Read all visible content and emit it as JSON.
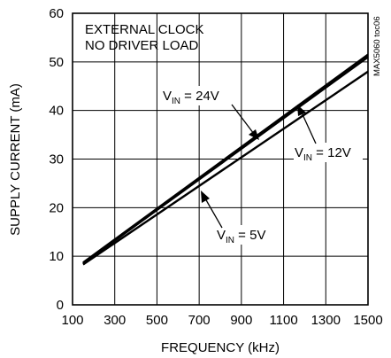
{
  "chart_data": {
    "type": "line",
    "title": "",
    "xlabel": "FREQUENCY (kHz)",
    "ylabel": "SUPPLY CURRENT (mA)",
    "xlim": [
      100,
      1500
    ],
    "ylim": [
      0,
      60
    ],
    "x_ticks": [
      "100",
      "300",
      "500",
      "700",
      "900",
      "1100",
      "1300",
      "1500"
    ],
    "y_ticks": [
      "0",
      "10",
      "20",
      "30",
      "40",
      "50",
      "60"
    ],
    "grid": true,
    "box_notes": [
      "EXTERNAL CLOCK",
      "NO DRIVER LOAD"
    ],
    "side_label": "MAX5060 toc06",
    "series": [
      {
        "name": "VIN = 24V",
        "label_main": "V",
        "label_sub": "IN",
        "label_rest": " = 24V",
        "x": [
          150,
          1500
        ],
        "y": [
          8.7,
          51.5
        ]
      },
      {
        "name": "VIN = 5V",
        "label_main": "V",
        "label_sub": "IN",
        "label_rest": " = 5V",
        "x": [
          150,
          1500
        ],
        "y": [
          8.5,
          51.0
        ]
      },
      {
        "name": "VIN = 12V",
        "label_main": "V",
        "label_sub": "IN",
        "label_rest": " = 12V",
        "x": [
          150,
          1500
        ],
        "y": [
          8.3,
          48.0
        ]
      }
    ]
  }
}
